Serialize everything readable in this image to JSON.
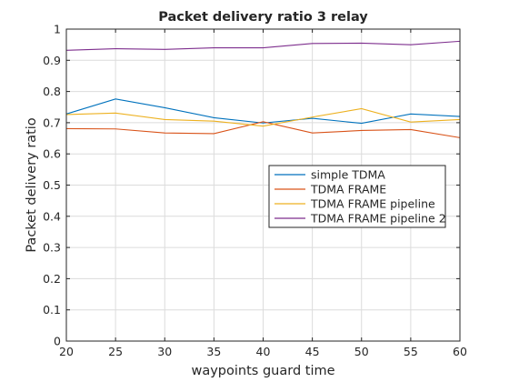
{
  "chart_data": {
    "type": "line",
    "title": "Packet delivery ratio 3 relay",
    "xlabel": "waypoints guard time",
    "ylabel": "Packet delivery ratio",
    "x": [
      20,
      25,
      30,
      35,
      40,
      45,
      50,
      55,
      60
    ],
    "xlim": [
      20,
      60
    ],
    "ylim": [
      0,
      1
    ],
    "xticks": [
      "20",
      "25",
      "30",
      "35",
      "40",
      "45",
      "50",
      "55",
      "60"
    ],
    "yticks": [
      "0",
      "0.1",
      "0.2",
      "0.3",
      "0.4",
      "0.5",
      "0.6",
      "0.7",
      "0.8",
      "0.9",
      "1"
    ],
    "grid": true,
    "legend_position": "right",
    "series": [
      {
        "name": "simple TDMA",
        "color": "#0072bd",
        "values": [
          0.728,
          0.776,
          0.748,
          0.716,
          0.699,
          0.714,
          0.698,
          0.728,
          0.72
        ]
      },
      {
        "name": "TDMA FRAME",
        "color": "#d95319",
        "values": [
          0.681,
          0.68,
          0.667,
          0.665,
          0.703,
          0.667,
          0.675,
          0.678,
          0.652
        ]
      },
      {
        "name": "TDMA FRAME pipeline",
        "color": "#edb120",
        "values": [
          0.726,
          0.731,
          0.71,
          0.705,
          0.689,
          0.718,
          0.745,
          0.702,
          0.71
        ]
      },
      {
        "name": "TDMA FRAME pipeline 2",
        "color": "#7e2f8e",
        "values": [
          0.932,
          0.937,
          0.935,
          0.94,
          0.94,
          0.954,
          0.955,
          0.95,
          0.961
        ]
      }
    ]
  }
}
